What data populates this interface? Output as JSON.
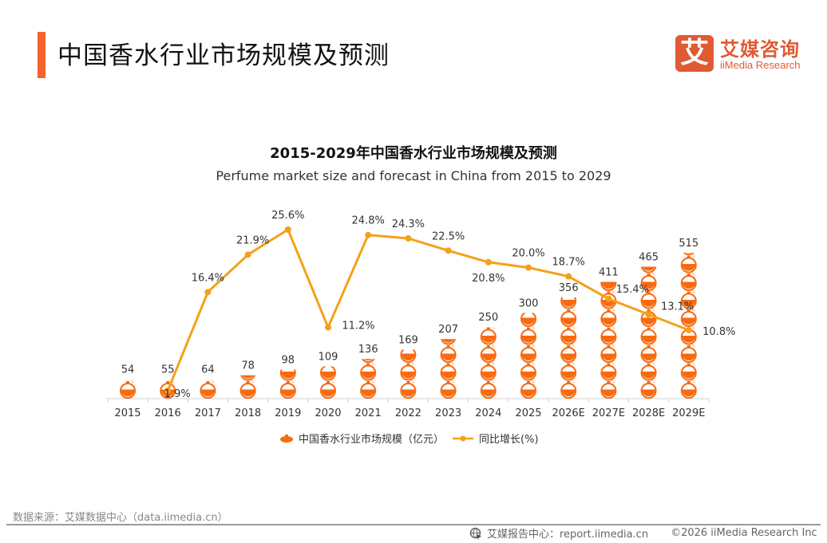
{
  "header": {
    "title": "中国香水行业市场规模及预测",
    "logo_glyph": "艾",
    "logo_cn": "艾媒咨询",
    "logo_en": "iiMedia Research",
    "accent_color": "#f4622e"
  },
  "chart_data": {
    "type": "bar+line",
    "title": "2015-2029年中国香水行业市场规模及预测",
    "subtitle": "Perfume market size and forecast in China from 2015 to 2029",
    "categories": [
      "2015",
      "2016",
      "2017",
      "2018",
      "2019",
      "2020",
      "2021",
      "2022",
      "2023",
      "2024",
      "2025",
      "2026E",
      "2027E",
      "2028E",
      "2029E"
    ],
    "series": [
      {
        "name": "中国香水行业市场规模（亿元）",
        "type": "pictograph-bar",
        "icon": "perfume-bottle-icon",
        "color": "#f96a0e",
        "values": [
          54,
          55,
          64,
          78,
          98,
          109,
          136,
          169,
          207,
          250,
          300,
          356,
          411,
          465,
          515
        ],
        "labels": [
          "54",
          "55",
          "64",
          "78",
          "98",
          "109",
          "136",
          "169",
          "207",
          "250",
          "300",
          "356",
          "411",
          "465",
          "515"
        ]
      },
      {
        "name": "同比增长(%)",
        "type": "line",
        "color": "#f5a01a",
        "values": [
          null,
          1.9,
          16.4,
          21.9,
          25.6,
          11.2,
          24.8,
          24.3,
          22.5,
          20.8,
          20.0,
          18.7,
          15.4,
          13.1,
          10.8
        ],
        "labels": [
          "",
          "1.9%",
          "16.4%",
          "21.9%",
          "25.6%",
          "11.2%",
          "24.8%",
          "24.3%",
          "22.5%",
          "20.8%",
          "20.0%",
          "18.7%",
          "15.4%",
          "13.1%",
          "10.8%"
        ]
      }
    ],
    "xlabel": "",
    "ylabel": "",
    "grid": false,
    "legend_position": "bottom"
  },
  "legend": {
    "bar_label": "中国香水行业市场规模（亿元）",
    "line_label": "同比增长(%)"
  },
  "footer": {
    "source": "数据来源：艾媒数据中心（data.iimedia.cn）",
    "report_center": "艾媒报告中心：report.iimedia.cn",
    "copyright": "©2026  iiMedia Research  Inc"
  }
}
